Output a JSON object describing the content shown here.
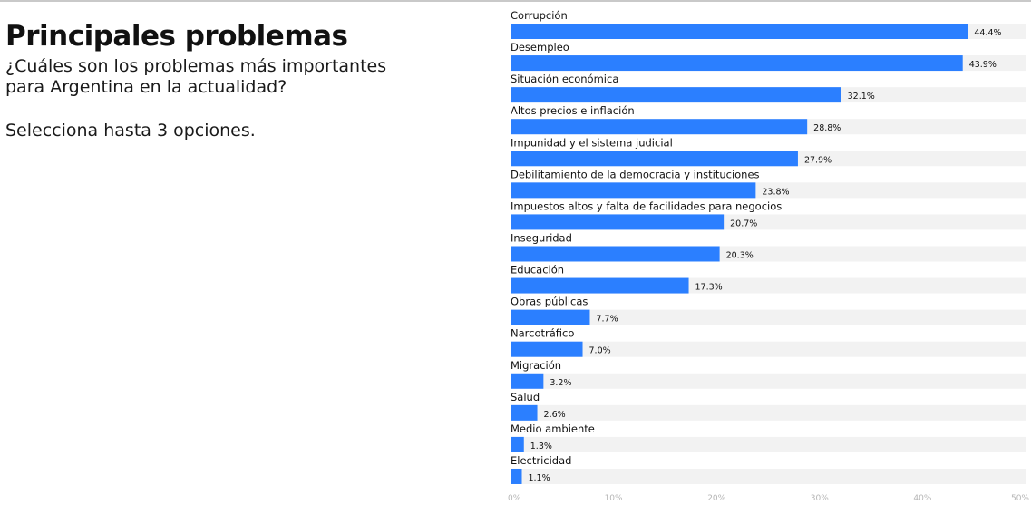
{
  "header": {
    "title": "Principales problemas",
    "subtitle_line1": "¿Cuáles son los problemas más importantes",
    "subtitle_line2": "para Argentina en la actualidad?",
    "instruction": "Selecciona hasta 3 opciones."
  },
  "colors": {
    "bar": "#2b7fff",
    "track": "#f2f2f2",
    "text": "#111111",
    "tick": "#b5b5b5"
  },
  "chart_data": {
    "type": "bar",
    "orientation": "horizontal",
    "categories": [
      "Corrupción",
      "Desempleo",
      "Situación económica",
      "Altos precios e inflación",
      "Impunidad y el sistema judicial",
      "Debilitamiento de la democracia y instituciones",
      "Impuestos altos y falta de facilidades para negocios",
      "Inseguridad",
      "Educación",
      "Obras públicas",
      "Narcotráfico",
      "Migración",
      "Salud",
      "Medio ambiente",
      "Electricidad"
    ],
    "values": [
      44.4,
      43.9,
      32.1,
      28.8,
      27.9,
      23.8,
      20.7,
      20.3,
      17.3,
      7.7,
      7.0,
      3.2,
      2.6,
      1.3,
      1.1
    ],
    "value_labels": [
      "44.4%",
      "43.9%",
      "32.1%",
      "28.8%",
      "27.9%",
      "23.8%",
      "20.7%",
      "20.3%",
      "17.3%",
      "7.7%",
      "7.0%",
      "3.2%",
      "2.6%",
      "1.3%",
      "1.1%"
    ],
    "xlim": [
      0,
      50
    ],
    "xticks": [
      0,
      10,
      20,
      30,
      40,
      50
    ],
    "xtick_labels": [
      "0%",
      "10%",
      "20%",
      "30%",
      "40%",
      "50%"
    ],
    "grid": false
  }
}
